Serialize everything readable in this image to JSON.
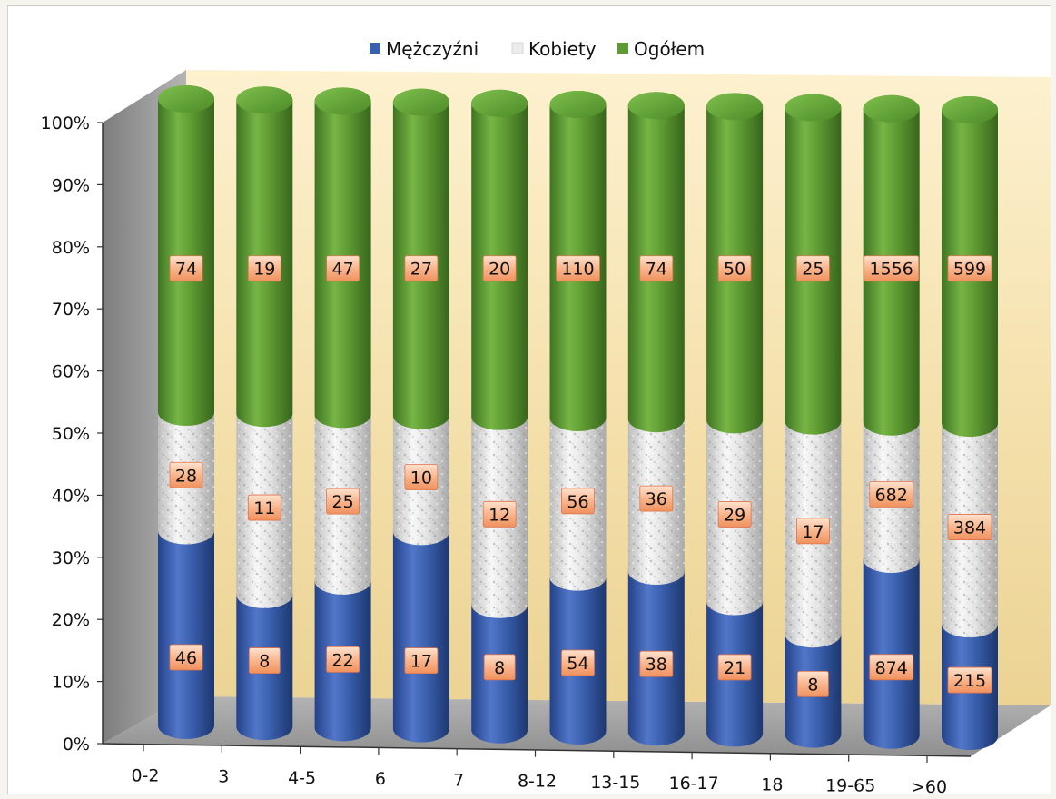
{
  "chart_data": {
    "type": "bar",
    "stacked": "percent",
    "style": "3d-cylinder",
    "title": "",
    "xlabel": "",
    "ylabel": "",
    "categories": [
      "0-2",
      "3",
      "4-5",
      "6",
      "7",
      "8-12",
      "13-15",
      "16-17",
      "18",
      "19-65",
      ">60"
    ],
    "series": [
      {
        "name": "Mężczyźni",
        "color": "#3a5fad",
        "values": [
          46,
          8,
          22,
          17,
          8,
          54,
          38,
          21,
          8,
          874,
          215
        ]
      },
      {
        "name": "Kobiety",
        "color": "#e6e6e6",
        "values": [
          28,
          11,
          25,
          10,
          12,
          56,
          36,
          29,
          17,
          682,
          384
        ]
      },
      {
        "name": "Ogółem",
        "color": "#5e9a32",
        "values": [
          74,
          19,
          47,
          27,
          20,
          110,
          74,
          50,
          25,
          1556,
          599
        ]
      }
    ],
    "y_ticks": [
      "0%",
      "10%",
      "20%",
      "30%",
      "40%",
      "50%",
      "60%",
      "70%",
      "80%",
      "90%",
      "100%"
    ],
    "ylim": [
      0,
      100
    ],
    "legend": "top",
    "grid": false,
    "data_labels": true
  }
}
